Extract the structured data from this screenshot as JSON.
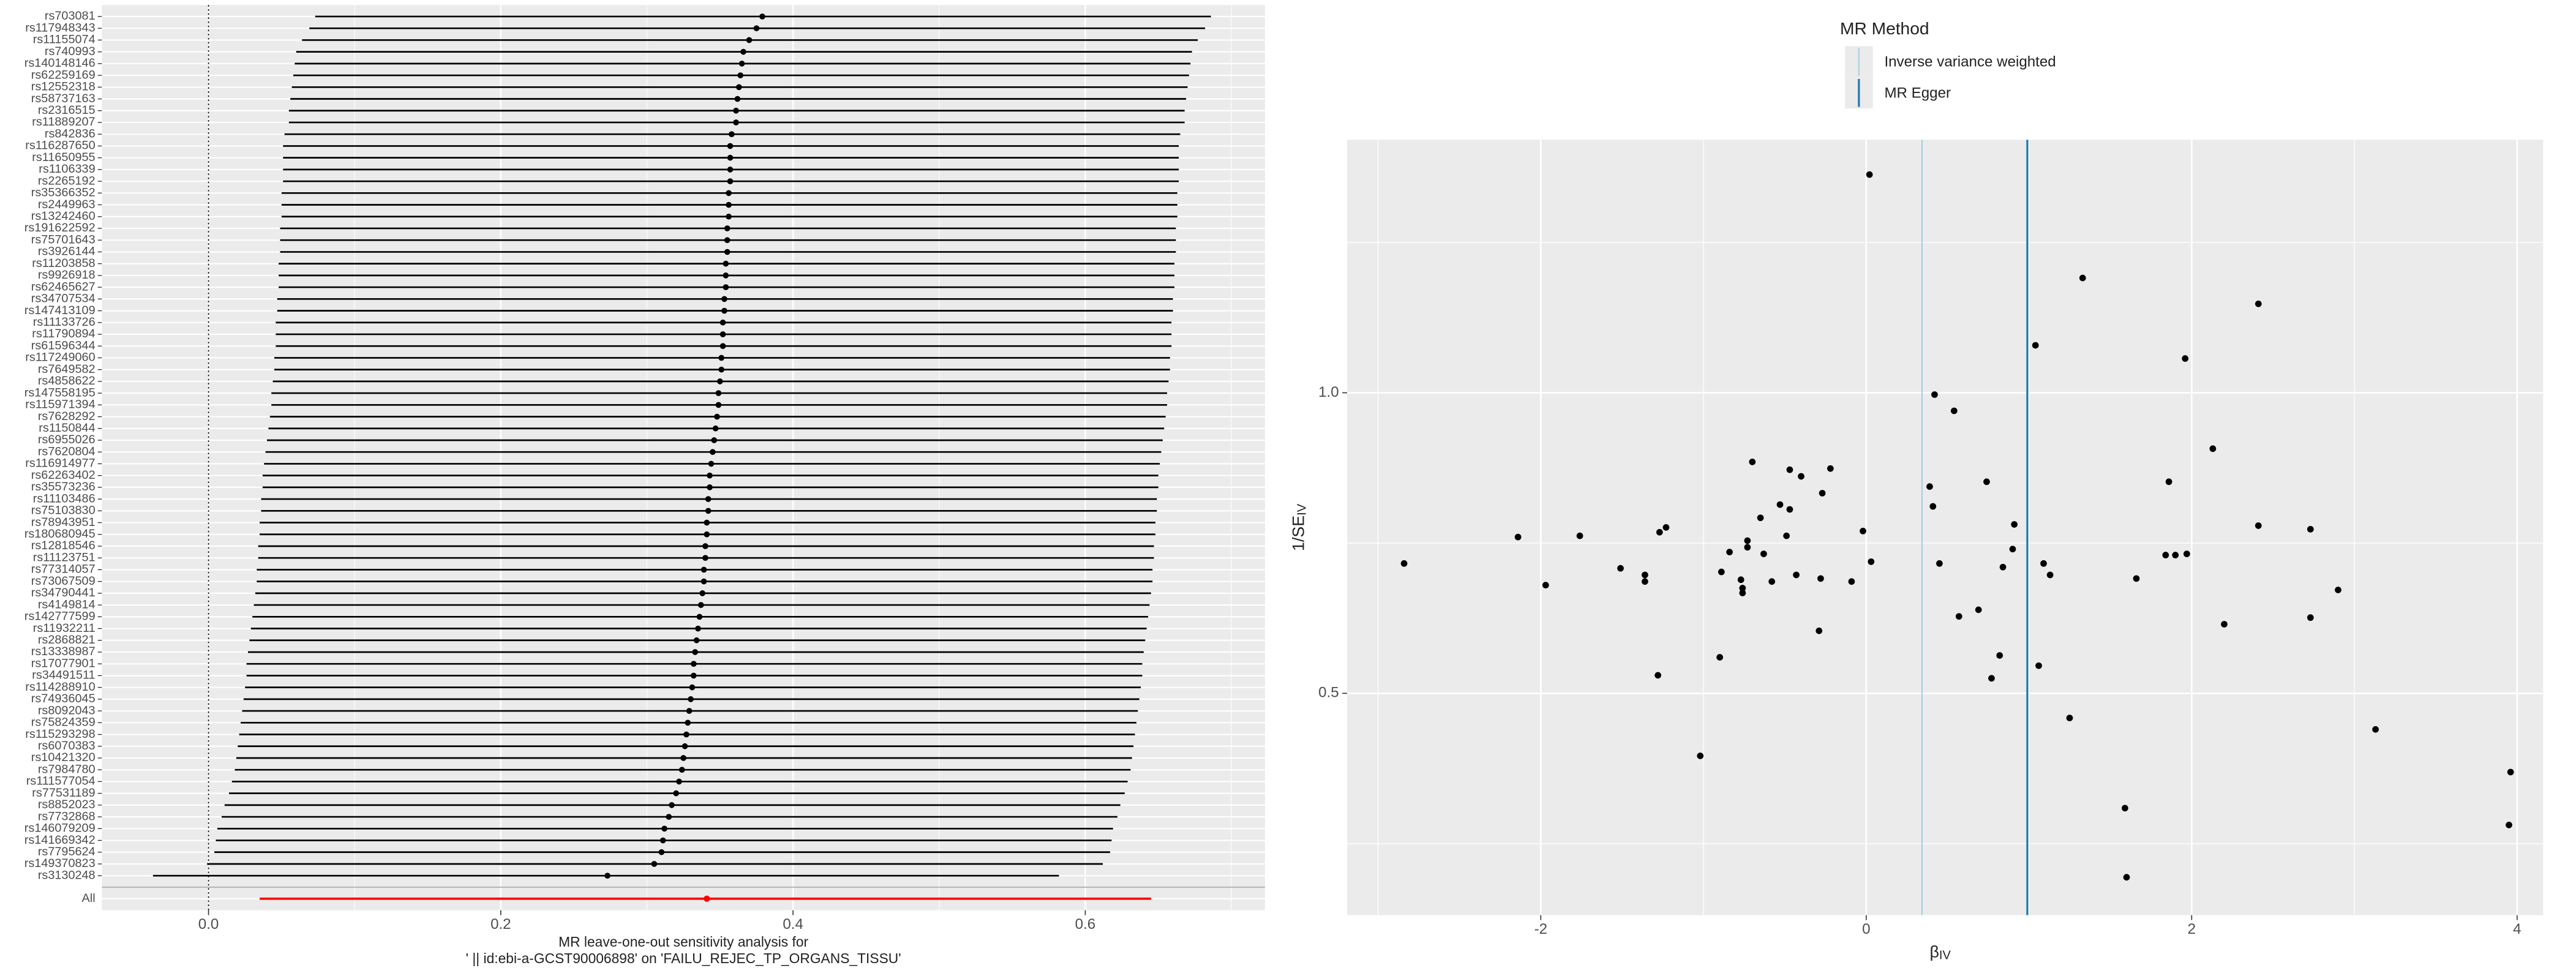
{
  "chart_data": [
    {
      "type": "forest",
      "snps": [
        "rs703081",
        "rs117948343",
        "rs11155074",
        "rs740993",
        "rs140148146",
        "rs62259169",
        "rs12552318",
        "rs58737163",
        "rs2316515",
        "rs11889207",
        "rs842836",
        "rs116287650",
        "rs11650955",
        "rs1106339",
        "rs2265192",
        "rs35366352",
        "rs2449963",
        "rs13242460",
        "rs191622592",
        "rs75701643",
        "rs3926144",
        "rs11203858",
        "rs9926918",
        "rs62465627",
        "rs34707534",
        "rs147413109",
        "rs11133726",
        "rs11790894",
        "rs61596344",
        "rs117249060",
        "rs7649582",
        "rs4858622",
        "rs147558195",
        "rs115971394",
        "rs7628292",
        "rs1150844",
        "rs6955026",
        "rs7620804",
        "rs116914977",
        "rs62263402",
        "rs35573236",
        "rs11103486",
        "rs75103830",
        "rs78943951",
        "rs180680945",
        "rs12818546",
        "rs11123751",
        "rs77314057",
        "rs73067509",
        "rs34790441",
        "rs4149814",
        "rs142777599",
        "rs11932211",
        "rs2868821",
        "rs13338987",
        "rs17077901",
        "rs34491511",
        "rs114288910",
        "rs74936045",
        "rs8092043",
        "rs75824359",
        "rs115293298",
        "rs6070383",
        "rs10421320",
        "rs7984780",
        "rs111577054",
        "rs77531189",
        "rs8852023",
        "rs7732868",
        "rs146079209",
        "rs141669342",
        "rs7795624",
        "rs149370823",
        "rs3130248"
      ],
      "values": [
        0.379,
        0.375,
        0.37,
        0.366,
        0.365,
        0.364,
        0.363,
        0.362,
        0.361,
        0.361,
        0.358,
        0.357,
        0.357,
        0.357,
        0.357,
        0.356,
        0.356,
        0.356,
        0.355,
        0.355,
        0.355,
        0.354,
        0.354,
        0.354,
        0.353,
        0.353,
        0.352,
        0.352,
        0.352,
        0.351,
        0.351,
        0.35,
        0.349,
        0.349,
        0.348,
        0.347,
        0.346,
        0.345,
        0.344,
        0.343,
        0.343,
        0.342,
        0.342,
        0.341,
        0.341,
        0.34,
        0.34,
        0.339,
        0.339,
        0.338,
        0.337,
        0.336,
        0.335,
        0.334,
        0.333,
        0.332,
        0.332,
        0.331,
        0.33,
        0.329,
        0.328,
        0.327,
        0.326,
        0.325,
        0.324,
        0.322,
        0.32,
        0.317,
        0.315,
        0.312,
        0.311,
        0.31,
        0.305,
        0.273
      ],
      "lower": [
        0.073,
        0.069,
        0.064,
        0.06,
        0.059,
        0.058,
        0.057,
        0.056,
        0.055,
        0.055,
        0.052,
        0.051,
        0.051,
        0.051,
        0.051,
        0.05,
        0.05,
        0.05,
        0.049,
        0.049,
        0.049,
        0.048,
        0.048,
        0.048,
        0.047,
        0.047,
        0.046,
        0.046,
        0.046,
        0.045,
        0.045,
        0.044,
        0.043,
        0.043,
        0.042,
        0.041,
        0.04,
        0.039,
        0.038,
        0.037,
        0.037,
        0.036,
        0.036,
        0.035,
        0.035,
        0.034,
        0.034,
        0.033,
        0.033,
        0.032,
        0.031,
        0.03,
        0.029,
        0.028,
        0.027,
        0.026,
        0.026,
        0.025,
        0.024,
        0.023,
        0.022,
        0.021,
        0.02,
        0.019,
        0.018,
        0.016,
        0.014,
        0.011,
        0.009,
        0.006,
        0.005,
        0.004,
        -0.001,
        -0.038
      ],
      "upper": [
        0.686,
        0.682,
        0.677,
        0.673,
        0.672,
        0.671,
        0.67,
        0.669,
        0.668,
        0.668,
        0.665,
        0.664,
        0.664,
        0.664,
        0.664,
        0.663,
        0.663,
        0.663,
        0.662,
        0.662,
        0.662,
        0.661,
        0.661,
        0.661,
        0.66,
        0.66,
        0.659,
        0.659,
        0.659,
        0.658,
        0.658,
        0.657,
        0.656,
        0.656,
        0.655,
        0.654,
        0.653,
        0.652,
        0.651,
        0.65,
        0.65,
        0.649,
        0.649,
        0.648,
        0.648,
        0.647,
        0.647,
        0.646,
        0.646,
        0.645,
        0.644,
        0.643,
        0.642,
        0.641,
        0.64,
        0.639,
        0.639,
        0.638,
        0.637,
        0.636,
        0.635,
        0.634,
        0.633,
        0.632,
        0.631,
        0.629,
        0.627,
        0.624,
        0.622,
        0.619,
        0.618,
        0.617,
        0.612,
        0.582
      ],
      "summary_label": "All",
      "summary_value": 0.341,
      "summary_lower": 0.035,
      "summary_upper": 0.645,
      "color": "#000000",
      "summary_color": "#ff0000",
      "refline": 0,
      "xlim": [
        -0.073,
        0.723
      ],
      "xticks": [
        {
          "value": 0,
          "label": "0.0"
        },
        0.2,
        0.4,
        0.6
      ],
      "xlabel": [
        "MR leave-one-out sensitivity analysis for",
        "' || id:ebi-a-GCST90006898' on 'FAILU_REJEC_TP_ORGANS_TISSU'"
      ],
      "grid": true
    },
    {
      "type": "scatter",
      "x": [
        -2.84,
        -2.14,
        -1.97,
        -1.76,
        -1.51,
        -1.36,
        -1.36,
        -1.28,
        -1.27,
        -1.23,
        -1.02,
        -0.9,
        -0.89,
        -0.84,
        -0.77,
        -0.76,
        -0.76,
        -0.73,
        -0.73,
        -0.7,
        -0.65,
        -0.63,
        -0.58,
        -0.53,
        -0.49,
        -0.47,
        -0.47,
        -0.43,
        -0.4,
        -0.29,
        -0.28,
        -0.27,
        -0.22,
        -0.09,
        -0.02,
        0.02,
        0.03,
        0.39,
        0.41,
        0.42,
        0.45,
        0.54,
        0.57,
        0.69,
        0.74,
        0.77,
        0.82,
        0.84,
        0.9,
        0.91,
        1.04,
        1.06,
        1.09,
        1.13,
        1.25,
        1.33,
        1.59,
        1.6,
        1.66,
        1.84,
        1.86,
        1.9,
        1.97,
        1.96,
        2.13,
        2.2,
        2.41,
        2.41,
        2.73,
        2.73,
        2.9,
        3.13,
        3.96,
        3.95
      ],
      "y": [
        0.716,
        0.76,
        0.68,
        0.762,
        0.708,
        0.697,
        0.686,
        0.53,
        0.768,
        0.776,
        0.396,
        0.56,
        0.702,
        0.735,
        0.689,
        0.675,
        0.667,
        0.754,
        0.743,
        0.885,
        0.792,
        0.732,
        0.686,
        0.814,
        0.762,
        0.806,
        0.872,
        0.697,
        0.861,
        0.604,
        0.691,
        0.833,
        0.874,
        0.686,
        0.77,
        1.363,
        0.719,
        0.844,
        0.811,
        0.997,
        0.716,
        0.97,
        0.628,
        0.639,
        0.852,
        0.525,
        0.563,
        0.71,
        0.74,
        0.781,
        1.079,
        0.546,
        0.716,
        0.697,
        0.459,
        1.191,
        0.309,
        0.194,
        0.691,
        0.73,
        0.852,
        0.73,
        0.732,
        1.057,
        0.907,
        0.615,
        1.148,
        0.779,
        0.773,
        0.626,
        0.672,
        0.44,
        0.369,
        0.281
      ],
      "color": "#000000",
      "legend_title": "MR Method",
      "lines": [
        {
          "name": "Inverse variance weighted",
          "color": "#a6cee3",
          "value": 0.343
        },
        {
          "name": "MR Egger",
          "color": "#1f78b4",
          "value": 0.99
        }
      ],
      "xlim": [
        -3.19,
        4.16
      ],
      "ylim": [
        0.131,
        1.421
      ],
      "xticks": [
        -2,
        0,
        2,
        4
      ],
      "yticks": [
        0.5,
        {
          "value": 1,
          "label": "1.0"
        }
      ],
      "xlabel": "β",
      "xlabel_sub": "IV",
      "ylabel": "1/SE",
      "ylabel_sub": "IV",
      "grid": true
    }
  ]
}
